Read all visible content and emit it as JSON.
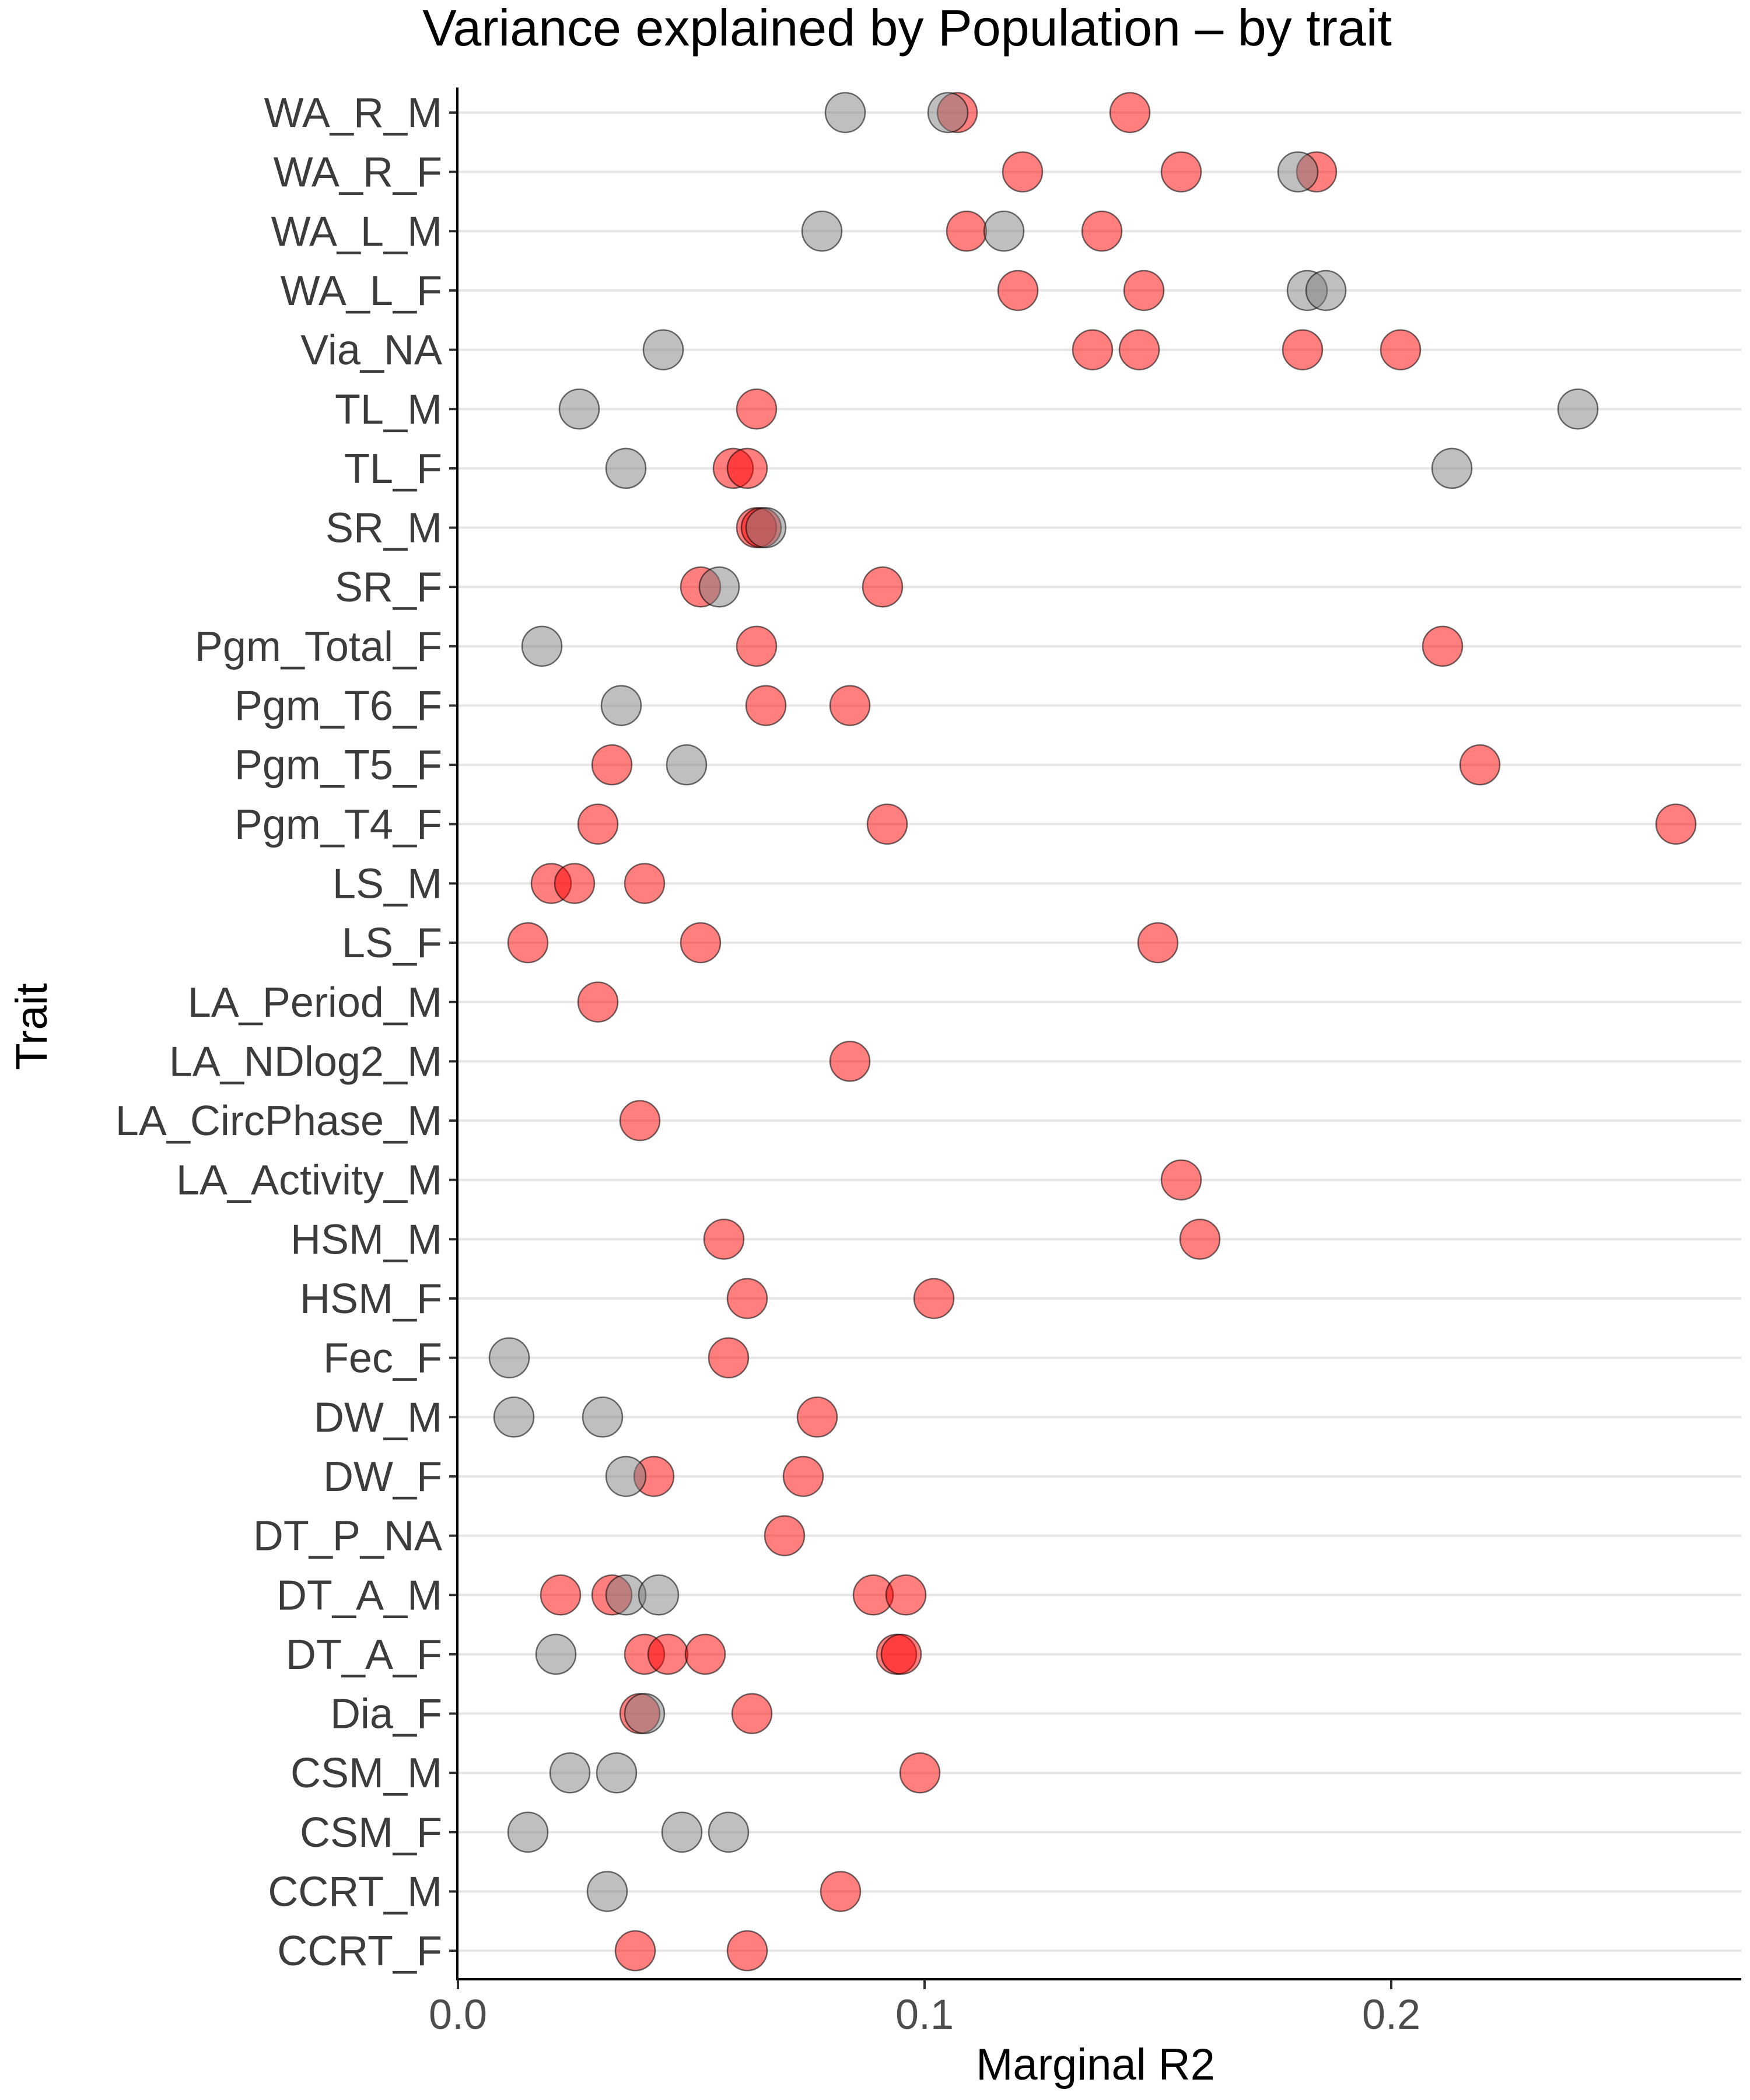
{
  "chart_data": {
    "type": "scatter",
    "title": "Variance explained by Population – by trait",
    "xlabel": "Marginal R2",
    "ylabel": "Trait",
    "xlim": [
      0,
      0.27
    ],
    "x_ticks": [
      0.0,
      0.1,
      0.2
    ],
    "x_tick_labels": [
      "0.0",
      "0.1",
      "0.2"
    ],
    "grid": "horizontal major lines only",
    "legend": "none",
    "colors": {
      "significant": "#ff0000",
      "non_significant": "#808080",
      "point_outline": "#000000"
    },
    "point_opacity": 0.5,
    "categories": [
      "WA_R_M",
      "WA_R_F",
      "WA_L_M",
      "WA_L_F",
      "Via_NA",
      "TL_M",
      "TL_F",
      "SR_M",
      "SR_F",
      "Pgm_Total_F",
      "Pgm_T6_F",
      "Pgm_T5_F",
      "Pgm_T4_F",
      "LS_M",
      "LS_F",
      "LA_Period_M",
      "LA_NDlog2_M",
      "LA_CircPhase_M",
      "LA_Activity_M",
      "HSM_M",
      "HSM_F",
      "Fec_F",
      "DW_M",
      "DW_F",
      "DT_P_NA",
      "DT_A_M",
      "DT_A_F",
      "Dia_F",
      "CSM_M",
      "CSM_F",
      "CCRT_M",
      "CCRT_F"
    ],
    "series": [
      {
        "color": "#ff0000",
        "points": [
          {
            "trait": "WA_R_M",
            "x": 0.107
          },
          {
            "trait": "WA_R_M",
            "x": 0.144
          },
          {
            "trait": "WA_R_F",
            "x": 0.121
          },
          {
            "trait": "WA_R_F",
            "x": 0.155
          },
          {
            "trait": "WA_R_F",
            "x": 0.184
          },
          {
            "trait": "WA_L_M",
            "x": 0.109
          },
          {
            "trait": "WA_L_M",
            "x": 0.138
          },
          {
            "trait": "WA_L_F",
            "x": 0.12
          },
          {
            "trait": "WA_L_F",
            "x": 0.147
          },
          {
            "trait": "Via_NA",
            "x": 0.136
          },
          {
            "trait": "Via_NA",
            "x": 0.146
          },
          {
            "trait": "Via_NA",
            "x": 0.181
          },
          {
            "trait": "Via_NA",
            "x": 0.202
          },
          {
            "trait": "TL_M",
            "x": 0.064
          },
          {
            "trait": "TL_F",
            "x": 0.059
          },
          {
            "trait": "TL_F",
            "x": 0.062
          },
          {
            "trait": "SR_M",
            "x": 0.064
          },
          {
            "trait": "SR_M",
            "x": 0.065
          },
          {
            "trait": "SR_F",
            "x": 0.052
          },
          {
            "trait": "SR_F",
            "x": 0.091
          },
          {
            "trait": "Pgm_Total_F",
            "x": 0.064
          },
          {
            "trait": "Pgm_Total_F",
            "x": 0.211
          },
          {
            "trait": "Pgm_T6_F",
            "x": 0.066
          },
          {
            "trait": "Pgm_T6_F",
            "x": 0.084
          },
          {
            "trait": "Pgm_T5_F",
            "x": 0.033
          },
          {
            "trait": "Pgm_T5_F",
            "x": 0.219
          },
          {
            "trait": "Pgm_T4_F",
            "x": 0.03
          },
          {
            "trait": "Pgm_T4_F",
            "x": 0.092
          },
          {
            "trait": "Pgm_T4_F",
            "x": 0.261
          },
          {
            "trait": "LS_M",
            "x": 0.02
          },
          {
            "trait": "LS_M",
            "x": 0.025
          },
          {
            "trait": "LS_M",
            "x": 0.04
          },
          {
            "trait": "LS_F",
            "x": 0.015
          },
          {
            "trait": "LS_F",
            "x": 0.052
          },
          {
            "trait": "LS_F",
            "x": 0.15
          },
          {
            "trait": "LA_Period_M",
            "x": 0.03
          },
          {
            "trait": "LA_NDlog2_M",
            "x": 0.084
          },
          {
            "trait": "LA_CircPhase_M",
            "x": 0.039
          },
          {
            "trait": "LA_Activity_M",
            "x": 0.155
          },
          {
            "trait": "HSM_M",
            "x": 0.057
          },
          {
            "trait": "HSM_M",
            "x": 0.159
          },
          {
            "trait": "HSM_F",
            "x": 0.062
          },
          {
            "trait": "HSM_F",
            "x": 0.102
          },
          {
            "trait": "Fec_F",
            "x": 0.058
          },
          {
            "trait": "DW_M",
            "x": 0.077
          },
          {
            "trait": "DW_F",
            "x": 0.042
          },
          {
            "trait": "DW_F",
            "x": 0.074
          },
          {
            "trait": "DT_P_NA",
            "x": 0.07
          },
          {
            "trait": "DT_A_M",
            "x": 0.022
          },
          {
            "trait": "DT_A_M",
            "x": 0.033
          },
          {
            "trait": "DT_A_M",
            "x": 0.089
          },
          {
            "trait": "DT_A_M",
            "x": 0.096
          },
          {
            "trait": "DT_A_F",
            "x": 0.04
          },
          {
            "trait": "DT_A_F",
            "x": 0.045
          },
          {
            "trait": "DT_A_F",
            "x": 0.053
          },
          {
            "trait": "DT_A_F",
            "x": 0.094
          },
          {
            "trait": "DT_A_F",
            "x": 0.095
          },
          {
            "trait": "Dia_F",
            "x": 0.039
          },
          {
            "trait": "Dia_F",
            "x": 0.063
          },
          {
            "trait": "CSM_M",
            "x": 0.099
          },
          {
            "trait": "CCRT_M",
            "x": 0.082
          },
          {
            "trait": "CCRT_F",
            "x": 0.038
          },
          {
            "trait": "CCRT_F",
            "x": 0.062
          }
        ]
      },
      {
        "color": "#808080",
        "points": [
          {
            "trait": "WA_R_M",
            "x": 0.083
          },
          {
            "trait": "WA_R_M",
            "x": 0.105
          },
          {
            "trait": "WA_R_F",
            "x": 0.18
          },
          {
            "trait": "WA_L_M",
            "x": 0.078
          },
          {
            "trait": "WA_L_M",
            "x": 0.117
          },
          {
            "trait": "WA_L_F",
            "x": 0.182
          },
          {
            "trait": "WA_L_F",
            "x": 0.186
          },
          {
            "trait": "Via_NA",
            "x": 0.044
          },
          {
            "trait": "TL_M",
            "x": 0.026
          },
          {
            "trait": "TL_M",
            "x": 0.24
          },
          {
            "trait": "TL_F",
            "x": 0.036
          },
          {
            "trait": "TL_F",
            "x": 0.213
          },
          {
            "trait": "SR_M",
            "x": 0.066
          },
          {
            "trait": "SR_F",
            "x": 0.056
          },
          {
            "trait": "Pgm_Total_F",
            "x": 0.018
          },
          {
            "trait": "Pgm_T6_F",
            "x": 0.035
          },
          {
            "trait": "Pgm_T5_F",
            "x": 0.049
          },
          {
            "trait": "Fec_F",
            "x": 0.011
          },
          {
            "trait": "DW_M",
            "x": 0.012
          },
          {
            "trait": "DW_M",
            "x": 0.031
          },
          {
            "trait": "DW_F",
            "x": 0.036
          },
          {
            "trait": "DT_A_M",
            "x": 0.036
          },
          {
            "trait": "DT_A_M",
            "x": 0.043
          },
          {
            "trait": "DT_A_F",
            "x": 0.021
          },
          {
            "trait": "Dia_F",
            "x": 0.04
          },
          {
            "trait": "CSM_M",
            "x": 0.024
          },
          {
            "trait": "CSM_M",
            "x": 0.034
          },
          {
            "trait": "CSM_F",
            "x": 0.015
          },
          {
            "trait": "CSM_F",
            "x": 0.048
          },
          {
            "trait": "CSM_F",
            "x": 0.058
          },
          {
            "trait": "CCRT_M",
            "x": 0.032
          }
        ]
      }
    ]
  }
}
